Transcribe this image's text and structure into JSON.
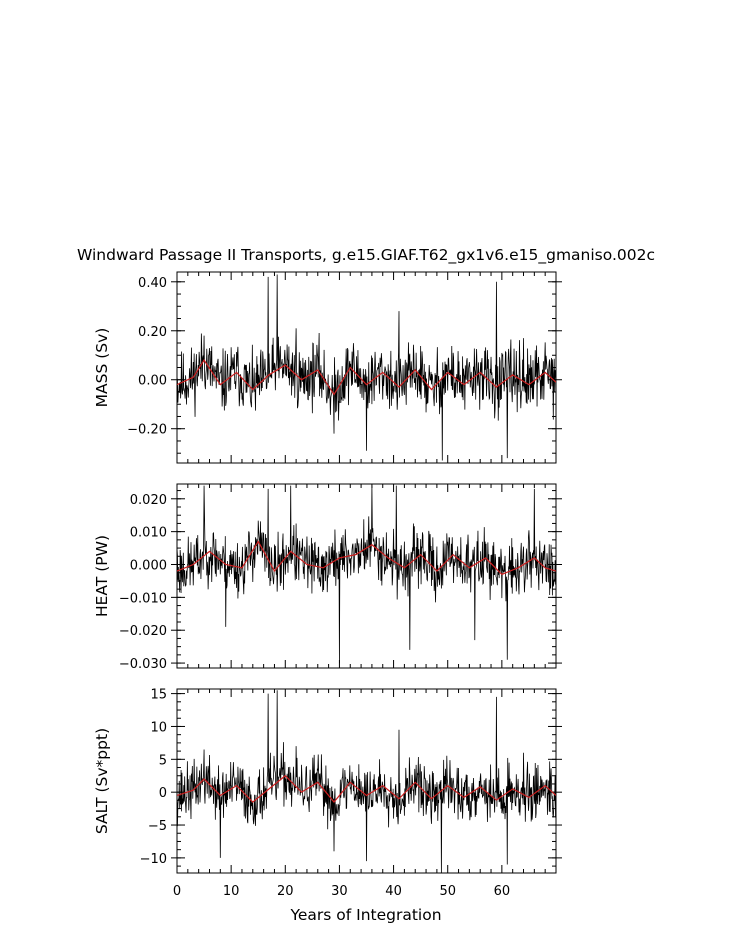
{
  "title": "Windward Passage II Transports, g.e15.GIAF.T62_gx1v6.e15_gmaniso.002c",
  "xlabel": "Years of Integration",
  "colors": {
    "raw": "#000000",
    "smoothed": "#cc1f1f"
  },
  "chart_data": [
    {
      "type": "line",
      "ylabel": "MASS (Sv)",
      "xlim": [
        0,
        70
      ],
      "ylim": [
        -0.34,
        0.44
      ],
      "yticks": [
        -0.2,
        0.0,
        0.2,
        0.4
      ],
      "ytick_labels": [
        "−0.20",
        "0.00",
        "0.20",
        "0.40"
      ],
      "xticks": [
        0,
        10,
        20,
        30,
        40,
        50,
        60
      ],
      "series": [
        {
          "style": "raw",
          "amplitude": 0.11,
          "seed": 11,
          "x": [
            0,
            5,
            16.8,
            18.5,
            22,
            29,
            35,
            41,
            49,
            59,
            61,
            64,
            70
          ],
          "y": [
            0.01,
            0.18,
            0.42,
            0.43,
            0.21,
            -0.22,
            -0.29,
            0.28,
            -0.33,
            0.4,
            -0.32,
            0.17,
            0.0
          ]
        },
        {
          "style": "smoothed",
          "x": [
            0,
            3,
            5,
            8,
            11,
            14,
            17,
            20,
            23,
            26,
            29,
            32,
            35,
            38,
            41,
            44,
            47,
            50,
            53,
            56,
            59,
            62,
            65,
            68,
            70
          ],
          "y": [
            -0.02,
            0.01,
            0.08,
            -0.02,
            0.03,
            -0.04,
            0.02,
            0.06,
            0.0,
            0.04,
            -0.06,
            0.05,
            -0.02,
            0.03,
            -0.03,
            0.04,
            -0.04,
            0.03,
            -0.02,
            0.03,
            -0.03,
            0.02,
            -0.02,
            0.03,
            -0.01
          ]
        }
      ]
    },
    {
      "type": "line",
      "ylabel": "HEAT (PW)",
      "xlim": [
        0,
        70
      ],
      "ylim": [
        -0.0315,
        0.0245
      ],
      "yticks": [
        -0.03,
        -0.02,
        -0.01,
        0.0,
        0.01,
        0.02
      ],
      "ytick_labels": [
        "−0.030",
        "−0.020",
        "−0.010",
        "0.000",
        "0.010",
        "0.020"
      ],
      "xticks": [
        0,
        10,
        20,
        30,
        40,
        50,
        60
      ],
      "series": [
        {
          "style": "raw",
          "amplitude": 0.0075,
          "seed": 23,
          "x": [
            0,
            5,
            9,
            16.8,
            21,
            30,
            36,
            40.5,
            43,
            55,
            61,
            66,
            70
          ],
          "y": [
            0.005,
            0.024,
            -0.019,
            0.023,
            0.024,
            -0.03,
            0.024,
            0.024,
            -0.026,
            -0.023,
            -0.029,
            0.023,
            0.0
          ]
        },
        {
          "style": "smoothed",
          "x": [
            0,
            3,
            6,
            9,
            12,
            15,
            18,
            21,
            24,
            27,
            30,
            33,
            36,
            39,
            42,
            45,
            48,
            51,
            54,
            57,
            60,
            63,
            66,
            68,
            70
          ],
          "y": [
            -0.002,
            0.0,
            0.004,
            0.0,
            -0.001,
            0.007,
            -0.002,
            0.004,
            0.0,
            -0.001,
            0.002,
            0.003,
            0.006,
            0.002,
            -0.001,
            0.003,
            -0.002,
            0.003,
            -0.001,
            0.002,
            -0.003,
            -0.001,
            0.002,
            -0.001,
            -0.002
          ]
        }
      ]
    },
    {
      "type": "line",
      "ylabel": "SALT (Sv*ppt)",
      "xlim": [
        0,
        70
      ],
      "ylim": [
        -12.3,
        15.7
      ],
      "yticks": [
        -10,
        -5,
        0,
        5,
        10,
        15
      ],
      "ytick_labels": [
        "−10",
        "−5",
        "0",
        "5",
        "10",
        "15"
      ],
      "xticks": [
        0,
        10,
        20,
        30,
        40,
        50,
        60
      ],
      "xtick_labels": [
        "0",
        "10",
        "20",
        "30",
        "40",
        "50",
        "60"
      ],
      "series": [
        {
          "style": "raw",
          "amplitude": 3.6,
          "seed": 37,
          "x": [
            0,
            5,
            8,
            16.8,
            18.5,
            22,
            29,
            35,
            41,
            48.8,
            59,
            61,
            64,
            70
          ],
          "y": [
            0.5,
            6.5,
            -10.0,
            15.0,
            15.5,
            7.0,
            -9.0,
            -10.5,
            9.5,
            -12.3,
            14.5,
            -11.0,
            6.0,
            0.0
          ]
        },
        {
          "style": "smoothed",
          "x": [
            0,
            3,
            5,
            8,
            11,
            14,
            17,
            20,
            23,
            26,
            29,
            32,
            35,
            38,
            41,
            44,
            47,
            50,
            53,
            56,
            59,
            62,
            65,
            68,
            70
          ],
          "y": [
            -0.5,
            0.3,
            2.0,
            -0.5,
            1.0,
            -1.5,
            0.5,
            2.5,
            0.0,
            1.5,
            -1.5,
            1.5,
            -0.5,
            1.0,
            -1.0,
            1.5,
            -1.0,
            1.0,
            -0.8,
            0.8,
            -1.2,
            0.5,
            -0.8,
            1.0,
            -0.5
          ]
        }
      ]
    }
  ]
}
